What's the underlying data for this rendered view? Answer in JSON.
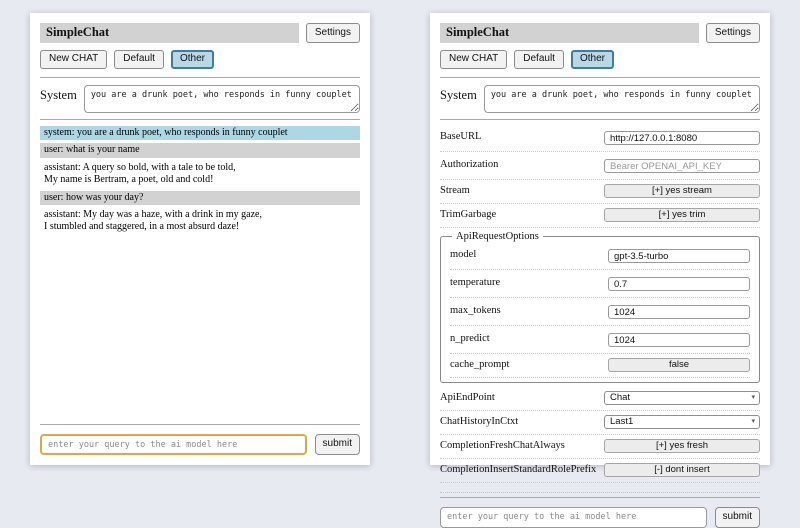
{
  "app": {
    "title": "SimpleChat",
    "settings_label": "Settings",
    "toolbar": {
      "new_chat": "New CHAT",
      "default_tab": "Default",
      "other_tab": "Other"
    },
    "system_label": "System",
    "system_prompt": "you are a drunk poet, who responds in funny couplet",
    "query_placeholder": "enter your query to the ai model here",
    "submit_label": "submit"
  },
  "chat": {
    "messages": [
      {
        "role": "system",
        "text": "system: you are a drunk poet, who responds in funny couplet"
      },
      {
        "role": "user",
        "text": "user: what is your name"
      },
      {
        "role": "assistant",
        "text": "assistant: A query so bold, with a tale to be told,\nMy name is Bertram, a poet, old and cold!"
      },
      {
        "role": "user",
        "text": "user: how was your day?"
      },
      {
        "role": "assistant",
        "text": "assistant: My day was a haze, with a drink in my gaze,\nI stumbled and staggered, in a most absurd daze!"
      }
    ]
  },
  "settings": {
    "base_url": {
      "label": "BaseURL",
      "value": "http://127.0.0.1:8080"
    },
    "authorization": {
      "label": "Authorization",
      "placeholder": "Bearer OPENAI_API_KEY"
    },
    "stream": {
      "label": "Stream",
      "button": "[+] yes stream"
    },
    "trim_garbage": {
      "label": "TrimGarbage",
      "button": "[+] yes trim"
    },
    "api_request_options": {
      "legend": "ApiRequestOptions",
      "model": {
        "label": "model",
        "value": "gpt-3.5-turbo"
      },
      "temperature": {
        "label": "temperature",
        "value": "0.7"
      },
      "max_tokens": {
        "label": "max_tokens",
        "value": "1024"
      },
      "n_predict": {
        "label": "n_predict",
        "value": "1024"
      },
      "cache_prompt": {
        "label": "cache_prompt",
        "button": "false"
      }
    },
    "api_endpoint": {
      "label": "ApiEndPoint",
      "selected": "Chat"
    },
    "chat_history_in_ctxt": {
      "label": "ChatHistoryInCtxt",
      "selected": "Last1"
    },
    "completion_fresh_chat_always": {
      "label": "CompletionFreshChatAlways",
      "button": "[+] yes fresh"
    },
    "completion_insert_standard_role_prefix": {
      "label": "CompletionInsertStandardRolePrefix",
      "button": "[-] dont insert"
    }
  },
  "icons": {
    "chevron_down": "▾"
  },
  "colors": {
    "page_background": "#e8eaf2",
    "titlebar_gray": "#d2d2d2",
    "system_message_bg": "#aed6e4",
    "user_message_bg": "#d2d2d2",
    "active_tab_bg": "#b9d8e6",
    "active_tab_border": "#3f7d9c",
    "focused_input_border": "#dca94a"
  }
}
